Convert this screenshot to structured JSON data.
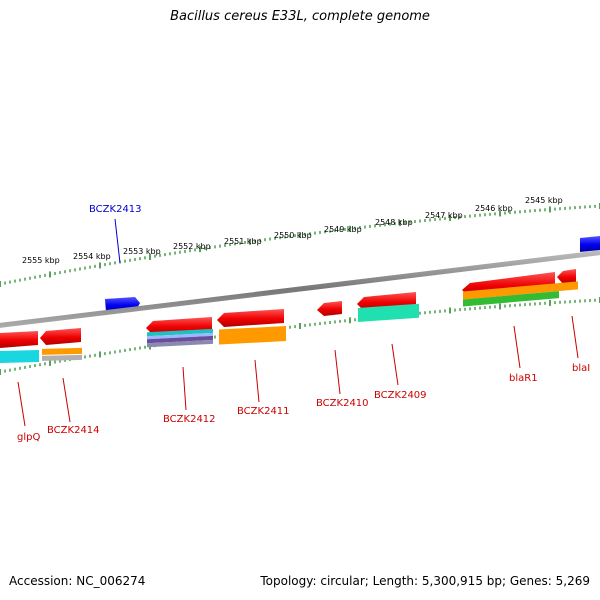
{
  "title": "Bacillus cereus E33L, complete genome",
  "footer": {
    "accession": "Accession: NC_006274",
    "summary": "Topology: circular; Length: 5,300,915 bp; Genes: 5,269"
  },
  "colors": {
    "backbone": "#888888",
    "tick": "#2e8b2e",
    "forward_gene": "#0000ee",
    "reverse_gene": "#ee0000",
    "forward_label": "#0000cc",
    "reverse_label": "#cc0000"
  },
  "scale_labels": [
    "2555 kbp",
    "2554 kbp",
    "2553 kbp",
    "2552 kbp",
    "2551 kbp",
    "2550 kbp",
    "2549 kbp",
    "2548 kbp",
    "2547 kbp",
    "2546 kbp",
    "2545 kbp"
  ],
  "gene_labels": [
    {
      "name": "BCZK2413",
      "strand": "forward"
    },
    {
      "name": "glpQ",
      "strand": "reverse"
    },
    {
      "name": "BCZK2414",
      "strand": "reverse"
    },
    {
      "name": "BCZK2412",
      "strand": "reverse"
    },
    {
      "name": "BCZK2411",
      "strand": "reverse"
    },
    {
      "name": "BCZK2410",
      "strand": "reverse"
    },
    {
      "name": "BCZK2409",
      "strand": "reverse"
    },
    {
      "name": "blaR1",
      "strand": "reverse"
    },
    {
      "name": "blaI",
      "strand": "reverse"
    }
  ]
}
